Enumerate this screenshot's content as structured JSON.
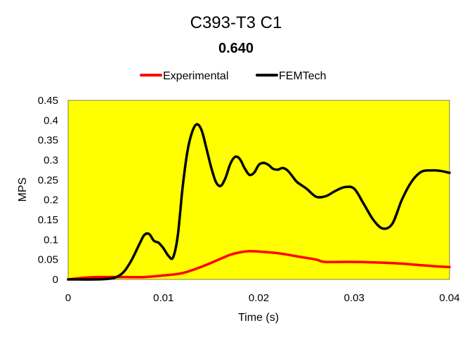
{
  "chart_data": {
    "type": "line",
    "title": "C393-T3 C1",
    "subtitle": "0.640",
    "xlabel": "Time (s)",
    "ylabel": "MPS",
    "xlim": [
      0,
      0.04
    ],
    "ylim": [
      0,
      0.45
    ],
    "xticks": [
      "0",
      "0.01",
      "0.02",
      "0.03",
      "0.04"
    ],
    "yticks": [
      "0",
      "0.05",
      "0.1",
      "0.15",
      "0.2",
      "0.25",
      "0.3",
      "0.35",
      "0.4",
      "0.45"
    ],
    "xtick_values": [
      0,
      0.01,
      0.02,
      0.03,
      0.04
    ],
    "ytick_values": [
      0,
      0.05,
      0.1,
      0.15,
      0.2,
      0.25,
      0.3,
      0.35,
      0.4,
      0.45
    ],
    "plot_background": "#ffff00",
    "legend_position": "top-center",
    "series": [
      {
        "name": "Experimental",
        "color": "#ff0000",
        "x": [
          0,
          0.002,
          0.004,
          0.006,
          0.008,
          0.01,
          0.012,
          0.014,
          0.016,
          0.017,
          0.018,
          0.019,
          0.02,
          0.022,
          0.024,
          0.026,
          0.027,
          0.03,
          0.034,
          0.038,
          0.04
        ],
        "y": [
          0,
          0.005,
          0.006,
          0.006,
          0.006,
          0.01,
          0.016,
          0.032,
          0.052,
          0.062,
          0.068,
          0.071,
          0.07,
          0.066,
          0.058,
          0.05,
          0.044,
          0.044,
          0.041,
          0.034,
          0.031
        ]
      },
      {
        "name": "FEMTech",
        "color": "#000000",
        "x": [
          0,
          0.004,
          0.0055,
          0.0065,
          0.0075,
          0.008,
          0.0085,
          0.009,
          0.0095,
          0.01,
          0.0105,
          0.011,
          0.0115,
          0.012,
          0.0125,
          0.013,
          0.0135,
          0.014,
          0.0145,
          0.015,
          0.0155,
          0.016,
          0.0165,
          0.017,
          0.0175,
          0.018,
          0.0185,
          0.019,
          0.0195,
          0.02,
          0.0205,
          0.021,
          0.0215,
          0.022,
          0.0225,
          0.023,
          0.0235,
          0.024,
          0.025,
          0.026,
          0.027,
          0.028,
          0.029,
          0.03,
          0.031,
          0.032,
          0.033,
          0.034,
          0.035,
          0.036,
          0.037,
          0.038,
          0.039,
          0.04
        ],
        "y": [
          0,
          0.001,
          0.012,
          0.042,
          0.09,
          0.112,
          0.114,
          0.097,
          0.092,
          0.078,
          0.06,
          0.055,
          0.11,
          0.23,
          0.32,
          0.37,
          0.39,
          0.375,
          0.33,
          0.282,
          0.245,
          0.235,
          0.255,
          0.29,
          0.308,
          0.303,
          0.28,
          0.263,
          0.268,
          0.288,
          0.293,
          0.288,
          0.278,
          0.276,
          0.28,
          0.274,
          0.26,
          0.245,
          0.228,
          0.208,
          0.209,
          0.222,
          0.232,
          0.228,
          0.19,
          0.15,
          0.128,
          0.14,
          0.2,
          0.245,
          0.27,
          0.274,
          0.273,
          0.268
        ]
      }
    ]
  }
}
